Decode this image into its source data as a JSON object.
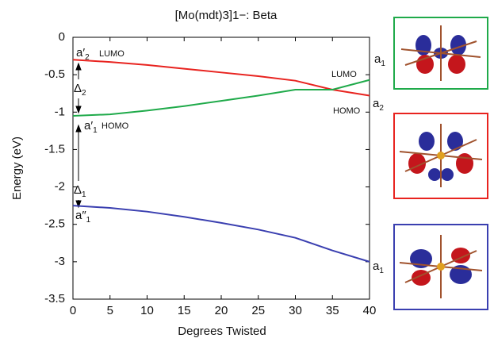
{
  "chart_data": {
    "type": "line",
    "title": "[Mo(mdt)3]1−: Beta",
    "x_label": "Degrees Twisted",
    "y_label": "Energy (eV)",
    "x": [
      0,
      5,
      10,
      15,
      20,
      25,
      30,
      35,
      40
    ],
    "xlim": [
      0,
      40
    ],
    "xticks": [
      0,
      5,
      10,
      15,
      20,
      25,
      30,
      35,
      40
    ],
    "ylim": [
      -3.5,
      0
    ],
    "yticks": [
      -3.5,
      -3,
      -2.5,
      -2,
      -1.5,
      -1,
      -0.5,
      0
    ],
    "series": [
      {
        "color": "#e8231f",
        "values": [
          -0.3,
          -0.33,
          -0.37,
          -0.42,
          -0.47,
          -0.52,
          -0.58,
          -0.7,
          -0.78
        ]
      },
      {
        "color": "#1faa4a",
        "values": [
          -1.05,
          -1.03,
          -0.98,
          -0.92,
          -0.85,
          -0.78,
          -0.7,
          -0.7,
          -0.57
        ]
      },
      {
        "color": "#3a3fb0",
        "values": [
          -2.25,
          -2.28,
          -2.33,
          -2.4,
          -2.48,
          -2.57,
          -2.68,
          -2.85,
          -3.0
        ]
      }
    ],
    "annotations": [
      {
        "text": "a′",
        "sub": "2"
      },
      {
        "text": "LUMO"
      },
      {
        "text": "Δ",
        "sub": "2"
      },
      {
        "text": "a′",
        "sub": "1"
      },
      {
        "text": "HOMO"
      },
      {
        "text": "Δ",
        "sub": "1"
      },
      {
        "text": "a″",
        "sub": "1"
      },
      {
        "text": "LUMO"
      },
      {
        "text": "a",
        "sub": "1"
      },
      {
        "text": "HOMO"
      },
      {
        "text": "a",
        "sub": "2"
      },
      {
        "text": "a",
        "sub": "1"
      }
    ]
  }
}
